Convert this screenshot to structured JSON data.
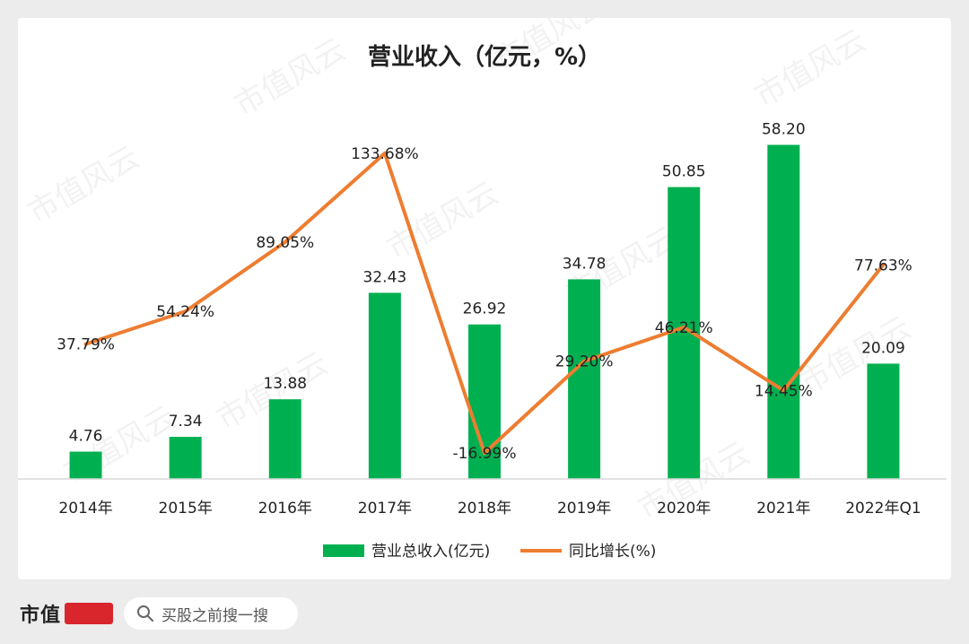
{
  "chart_data": {
    "type": "bar+line",
    "title": "营业收入（亿元，%）",
    "categories": [
      "2014年",
      "2015年",
      "2016年",
      "2017年",
      "2018年",
      "2019年",
      "2020年",
      "2021年",
      "2022年Q1"
    ],
    "series": [
      {
        "name": "营业总收入(亿元)",
        "type": "bar",
        "color": "#00b050",
        "values": [
          4.76,
          7.34,
          13.88,
          32.43,
          26.92,
          34.78,
          50.85,
          58.2,
          20.09
        ],
        "labels": [
          "4.76",
          "7.34",
          "13.88",
          "32.43",
          "26.92",
          "34.78",
          "50.85",
          "58.20",
          "20.09"
        ]
      },
      {
        "name": "同比增长(%)",
        "type": "line",
        "color": "#ed7d31",
        "values": [
          37.79,
          54.24,
          89.05,
          133.68,
          -16.99,
          29.2,
          46.21,
          14.45,
          77.63
        ],
        "labels": [
          "37.79%",
          "54.24%",
          "89.05%",
          "133.68%",
          "-16.99%",
          "29.20%",
          "46.21%",
          "14.45%",
          "77.63%"
        ]
      }
    ],
    "ylim_bar": [
      0,
      60
    ],
    "ylim_line": [
      -30,
      135
    ],
    "legend_position": "bottom",
    "grid": false
  },
  "watermark": "市值风云",
  "footer": {
    "brand": "市值",
    "search_icon": "search-icon",
    "search_text": "买股之前搜一搜"
  }
}
